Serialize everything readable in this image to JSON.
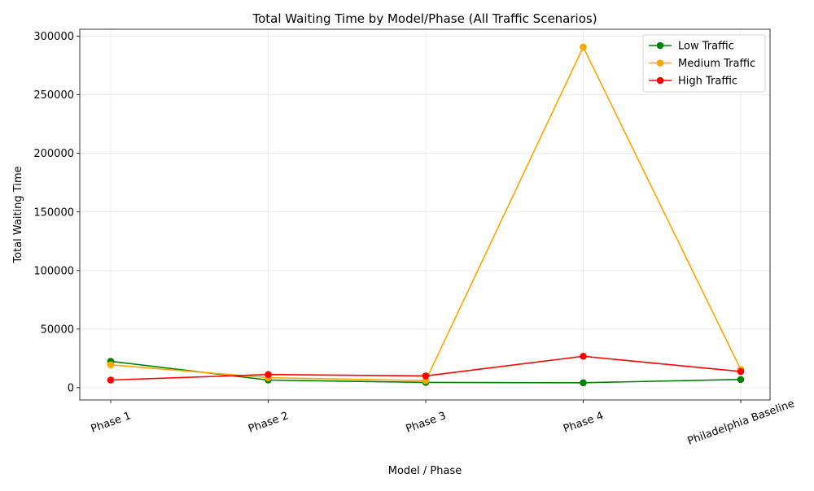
{
  "chart_data": {
    "type": "line",
    "title": "Total Waiting Time by Model/Phase (All Traffic Scenarios)",
    "xlabel": "Model / Phase",
    "ylabel": "Total Waiting Time",
    "categories": [
      "Phase 1",
      "Phase 2",
      "Phase 3",
      "Phase 4",
      "Philadelphia Baseline"
    ],
    "ylim": [
      -10500,
      306000
    ],
    "yticks": [
      0,
      50000,
      100000,
      150000,
      200000,
      250000,
      300000
    ],
    "ytick_labels": [
      "0",
      "50000",
      "100000",
      "150000",
      "200000",
      "250000",
      "300000"
    ],
    "grid": true,
    "legend": "top-right",
    "series": [
      {
        "name": "Low Traffic",
        "color": "#008000",
        "values": [
          22500,
          6500,
          4500,
          4200,
          7000
        ]
      },
      {
        "name": "Medium Traffic",
        "color": "#ffa500",
        "values": [
          19500,
          8500,
          6000,
          290800,
          15500
        ]
      },
      {
        "name": "High Traffic",
        "color": "#ff0000",
        "values": [
          6500,
          11200,
          10000,
          26800,
          13800
        ]
      }
    ]
  }
}
